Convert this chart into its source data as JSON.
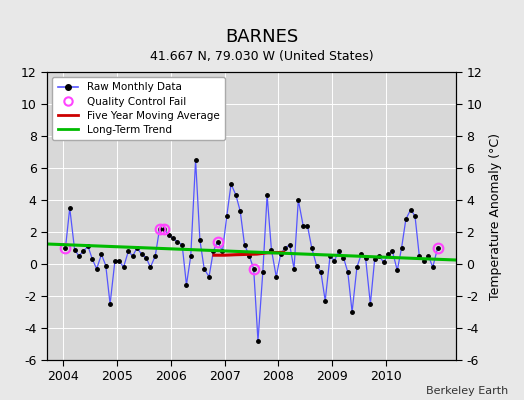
{
  "title": "BARNES",
  "subtitle": "41.667 N, 79.030 W (United States)",
  "ylabel": "Temperature Anomaly (°C)",
  "credit": "Berkeley Earth",
  "ylim": [
    -6,
    12
  ],
  "yticks": [
    -6,
    -4,
    -2,
    0,
    2,
    4,
    6,
    8,
    10,
    12
  ],
  "xlim": [
    2003.7,
    2011.3
  ],
  "xticks": [
    2004,
    2005,
    2006,
    2007,
    2008,
    2009,
    2010
  ],
  "bg_color": "#e8e8e8",
  "plot_bg_color": "#d8d8d8",
  "raw_x": [
    2004.04,
    2004.12,
    2004.21,
    2004.29,
    2004.37,
    2004.46,
    2004.54,
    2004.62,
    2004.71,
    2004.79,
    2004.87,
    2004.96,
    2005.04,
    2005.12,
    2005.21,
    2005.29,
    2005.37,
    2005.46,
    2005.54,
    2005.62,
    2005.71,
    2005.79,
    2005.87,
    2005.96,
    2006.04,
    2006.12,
    2006.21,
    2006.29,
    2006.37,
    2006.46,
    2006.54,
    2006.62,
    2006.71,
    2006.79,
    2006.87,
    2006.96,
    2007.04,
    2007.12,
    2007.21,
    2007.29,
    2007.37,
    2007.46,
    2007.54,
    2007.62,
    2007.71,
    2007.79,
    2007.87,
    2007.96,
    2008.04,
    2008.12,
    2008.21,
    2008.29,
    2008.37,
    2008.46,
    2008.54,
    2008.62,
    2008.71,
    2008.79,
    2008.87,
    2008.96,
    2009.04,
    2009.12,
    2009.21,
    2009.29,
    2009.37,
    2009.46,
    2009.54,
    2009.62,
    2009.71,
    2009.79,
    2009.87,
    2009.96,
    2010.04,
    2010.12,
    2010.21,
    2010.29,
    2010.37,
    2010.46,
    2010.54,
    2010.62,
    2010.71,
    2010.79,
    2010.87,
    2010.96
  ],
  "raw_y": [
    1.0,
    3.5,
    0.9,
    0.5,
    0.8,
    1.1,
    0.3,
    -0.3,
    0.6,
    -0.1,
    -2.5,
    0.2,
    0.2,
    -0.2,
    0.8,
    0.5,
    1.0,
    0.6,
    0.4,
    -0.2,
    0.5,
    2.2,
    2.2,
    1.8,
    1.6,
    1.4,
    1.2,
    -1.3,
    0.5,
    6.5,
    1.5,
    -0.3,
    -0.8,
    0.8,
    1.4,
    0.8,
    3.0,
    5.0,
    4.3,
    3.3,
    1.2,
    0.5,
    -0.3,
    -4.8,
    -0.5,
    4.3,
    0.9,
    -0.8,
    0.6,
    1.0,
    1.2,
    -0.3,
    4.0,
    2.4,
    2.4,
    1.0,
    -0.1,
    -0.5,
    -2.3,
    0.5,
    0.2,
    0.8,
    0.4,
    -0.5,
    -3.0,
    -0.2,
    0.6,
    0.4,
    -2.5,
    0.3,
    0.5,
    0.1,
    0.6,
    0.8,
    -0.4,
    1.0,
    2.8,
    3.4,
    3.0,
    0.5,
    0.2,
    0.5,
    -0.2,
    1.0
  ],
  "qc_fail_x": [
    2004.04,
    2005.79,
    2005.87,
    2006.87,
    2007.54,
    2010.96
  ],
  "qc_fail_y": [
    1.0,
    2.2,
    2.2,
    1.4,
    -0.3,
    1.0
  ],
  "ma_x": [
    2006.8,
    2007.0,
    2007.2,
    2007.4,
    2007.6,
    2007.8,
    2008.0,
    2008.1
  ],
  "ma_y": [
    0.55,
    0.55,
    0.58,
    0.6,
    0.62,
    0.7,
    0.72,
    0.73
  ],
  "trend_x": [
    2003.7,
    2011.3
  ],
  "trend_y": [
    1.25,
    0.25
  ],
  "raw_color": "#0000cc",
  "raw_line_color": "#5555ff",
  "qc_color": "#ff44ff",
  "ma_color": "#cc0000",
  "trend_color": "#00bb00",
  "legend_bg": "#ffffff",
  "title_fontsize": 13,
  "subtitle_fontsize": 9,
  "axis_fontsize": 9,
  "credit_fontsize": 8
}
